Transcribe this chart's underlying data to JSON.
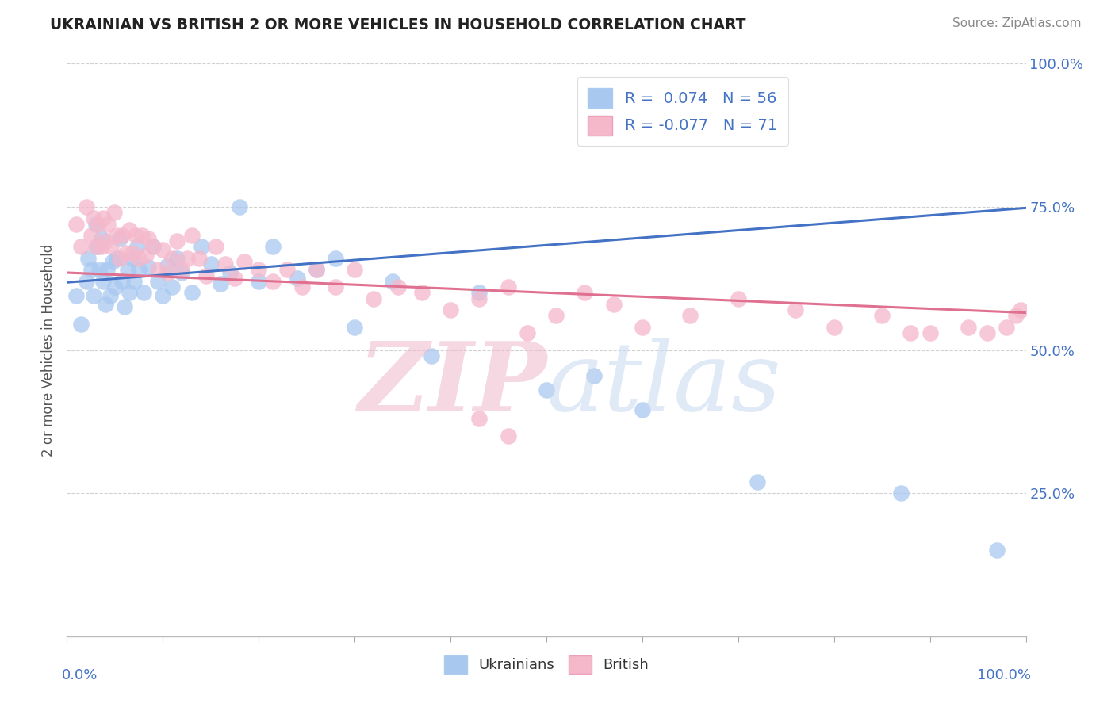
{
  "title": "UKRAINIAN VS BRITISH 2 OR MORE VEHICLES IN HOUSEHOLD CORRELATION CHART",
  "source": "Source: ZipAtlas.com",
  "ylabel": "2 or more Vehicles in Household",
  "xlim": [
    0.0,
    1.0
  ],
  "ylim": [
    0.0,
    1.0
  ],
  "ytick_positions": [
    0.25,
    0.5,
    0.75,
    1.0
  ],
  "legend_entries": [
    {
      "label": "R =  0.074   N = 56",
      "color": "#a8c8f0"
    },
    {
      "label": "R = -0.077   N = 71",
      "color": "#f5b8cb"
    }
  ],
  "blue_line": {
    "x0": 0.0,
    "y0": 0.618,
    "x1": 1.0,
    "y1": 0.748
  },
  "pink_line": {
    "x0": 0.0,
    "y0": 0.635,
    "x1": 1.0,
    "y1": 0.565
  },
  "blue_points_x": [
    0.01,
    0.015,
    0.02,
    0.022,
    0.025,
    0.028,
    0.03,
    0.032,
    0.034,
    0.036,
    0.038,
    0.04,
    0.042,
    0.045,
    0.048,
    0.05,
    0.052,
    0.055,
    0.058,
    0.06,
    0.063,
    0.065,
    0.068,
    0.07,
    0.073,
    0.075,
    0.08,
    0.085,
    0.09,
    0.095,
    0.1,
    0.105,
    0.11,
    0.115,
    0.12,
    0.13,
    0.14,
    0.15,
    0.16,
    0.17,
    0.18,
    0.2,
    0.215,
    0.24,
    0.26,
    0.28,
    0.3,
    0.34,
    0.38,
    0.43,
    0.5,
    0.55,
    0.6,
    0.72,
    0.87,
    0.97
  ],
  "blue_points_y": [
    0.595,
    0.545,
    0.62,
    0.66,
    0.64,
    0.595,
    0.72,
    0.68,
    0.64,
    0.695,
    0.62,
    0.58,
    0.64,
    0.595,
    0.655,
    0.61,
    0.66,
    0.695,
    0.62,
    0.575,
    0.64,
    0.6,
    0.66,
    0.62,
    0.68,
    0.64,
    0.6,
    0.645,
    0.68,
    0.62,
    0.595,
    0.648,
    0.61,
    0.66,
    0.635,
    0.6,
    0.68,
    0.65,
    0.615,
    0.635,
    0.75,
    0.62,
    0.68,
    0.625,
    0.64,
    0.66,
    0.54,
    0.62,
    0.49,
    0.6,
    0.43,
    0.455,
    0.395,
    0.27,
    0.25,
    0.15
  ],
  "pink_points_x": [
    0.01,
    0.015,
    0.02,
    0.025,
    0.028,
    0.03,
    0.033,
    0.036,
    0.038,
    0.04,
    0.043,
    0.046,
    0.049,
    0.052,
    0.055,
    0.058,
    0.062,
    0.065,
    0.068,
    0.072,
    0.075,
    0.078,
    0.082,
    0.085,
    0.09,
    0.095,
    0.1,
    0.105,
    0.11,
    0.115,
    0.12,
    0.125,
    0.13,
    0.138,
    0.145,
    0.155,
    0.165,
    0.175,
    0.185,
    0.2,
    0.215,
    0.23,
    0.245,
    0.26,
    0.28,
    0.3,
    0.32,
    0.345,
    0.37,
    0.4,
    0.43,
    0.46,
    0.48,
    0.51,
    0.54,
    0.57,
    0.6,
    0.65,
    0.7,
    0.76,
    0.8,
    0.85,
    0.88,
    0.9,
    0.94,
    0.96,
    0.98,
    0.99,
    0.995,
    0.43,
    0.46
  ],
  "pink_points_y": [
    0.72,
    0.68,
    0.75,
    0.7,
    0.73,
    0.68,
    0.72,
    0.68,
    0.73,
    0.69,
    0.72,
    0.68,
    0.74,
    0.7,
    0.66,
    0.7,
    0.67,
    0.71,
    0.67,
    0.7,
    0.66,
    0.7,
    0.665,
    0.695,
    0.68,
    0.64,
    0.675,
    0.635,
    0.66,
    0.69,
    0.64,
    0.66,
    0.7,
    0.66,
    0.63,
    0.68,
    0.65,
    0.625,
    0.655,
    0.64,
    0.62,
    0.64,
    0.61,
    0.64,
    0.61,
    0.64,
    0.59,
    0.61,
    0.6,
    0.57,
    0.59,
    0.61,
    0.53,
    0.56,
    0.6,
    0.58,
    0.54,
    0.56,
    0.59,
    0.57,
    0.54,
    0.56,
    0.53,
    0.53,
    0.54,
    0.53,
    0.54,
    0.56,
    0.57,
    0.38,
    0.35
  ],
  "background_color": "#ffffff",
  "blue_color": "#a8c8f0",
  "pink_color": "#f5b8cb",
  "blue_line_color": "#4472C4",
  "pink_line_color": "#e07090",
  "grid_color": "#cccccc",
  "title_color": "#222222",
  "axis_label_color": "#4472C4",
  "source_color": "#888888"
}
